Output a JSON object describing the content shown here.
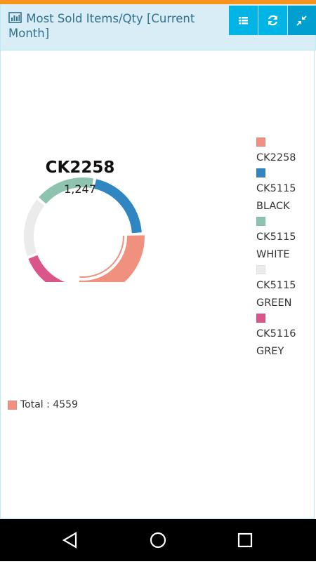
{
  "header": {
    "title": "Most Sold Items/Qty [Current Month]"
  },
  "chart_data": {
    "type": "donut",
    "categories": [
      "CK2258",
      "CK5115 BLACK",
      "CK5115 WHITE",
      "CK5115 GREEN",
      "CK5116 GREY"
    ],
    "values": [
      1247,
      960,
      780,
      774,
      798
    ],
    "colors": [
      "#f0907e",
      "#2f86c0",
      "#8ec3b0",
      "#ebebeb",
      "#d9558a"
    ],
    "center_value_label": "1,247",
    "total_label": "Total : 4559"
  }
}
